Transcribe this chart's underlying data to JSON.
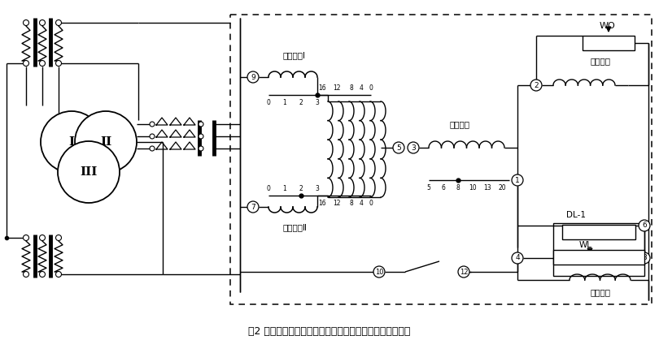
{
  "title": "图2 继电器内部接线及保护三绕组电力变压器的原理接线图",
  "bg": "#ffffff",
  "label_I": "平衡绕组Ⅰ",
  "label_II": "平衡绕组Ⅱ",
  "label_work": "工作绕组",
  "label_short": "短路绕组",
  "label_sec": "二次绕组",
  "label_WO": "WO",
  "label_WL": "WL",
  "label_DL1": "DL-1"
}
